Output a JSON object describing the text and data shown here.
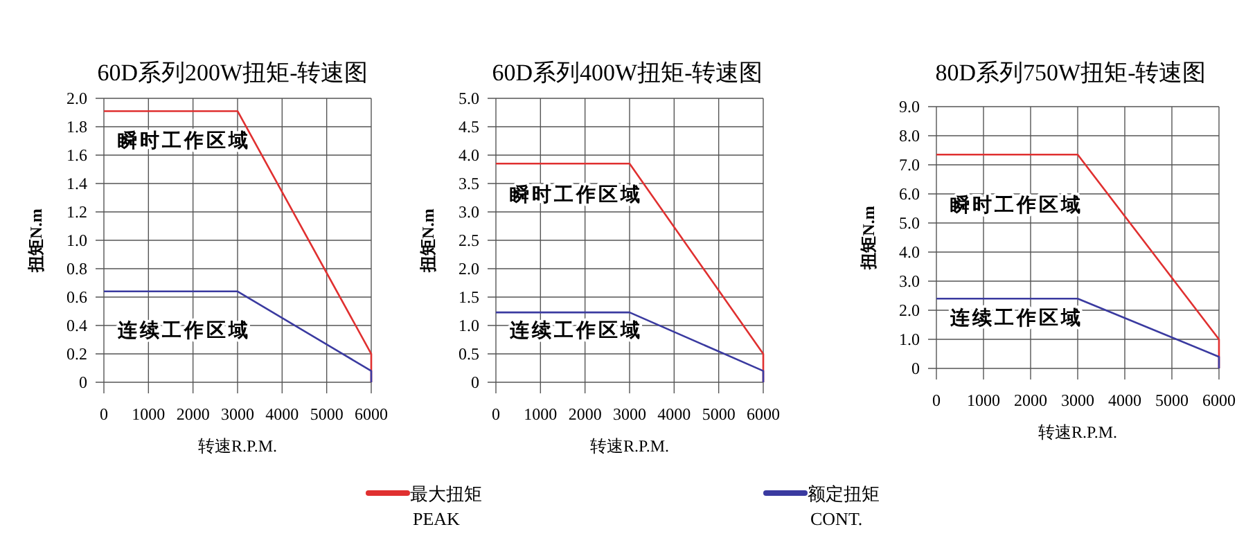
{
  "chart_data": [
    {
      "type": "line",
      "title": "60D系列200W扭矩-转速图",
      "xlabel": "转速R.P.M.",
      "ylabel": "扭矩N.m",
      "xlim": [
        0,
        6000
      ],
      "xticks": [
        0,
        1000,
        2000,
        3000,
        4000,
        5000,
        6000
      ],
      "ylim": [
        0,
        2
      ],
      "yticks": [
        0,
        0.2,
        0.4,
        0.6,
        0.8,
        {
          "value": 1,
          "label": "1.0"
        },
        1.2,
        1.4,
        1.6,
        1.8,
        {
          "value": 2,
          "label": "2.0"
        }
      ],
      "grid": true,
      "legend": "bottom",
      "annotations": [
        "瞬时工作区域",
        "连续工作区域"
      ],
      "series": [
        {
          "name": "最大扭矩\nPEAK",
          "color": "#e03030",
          "x": [
            0,
            3000,
            6000,
            6000
          ],
          "values": [
            1.91,
            1.91,
            0.2,
            0
          ]
        },
        {
          "name": "额定扭矩\nCONT.",
          "color": "#3a3aa0",
          "x": [
            0,
            3000,
            6000,
            6000
          ],
          "values": [
            0.64,
            0.64,
            0.08,
            0
          ]
        }
      ]
    },
    {
      "type": "line",
      "title": "60D系列400W扭矩-转速图",
      "xlabel": "转速R.P.M.",
      "ylabel": "扭矩N.m",
      "xlim": [
        0,
        6000
      ],
      "xticks": [
        0,
        1000,
        2000,
        3000,
        4000,
        5000,
        6000
      ],
      "ylim": [
        0,
        5
      ],
      "yticks": [
        0,
        0.5,
        {
          "value": 1,
          "label": "1.0"
        },
        1.5,
        {
          "value": 2,
          "label": "2.0"
        },
        2.5,
        {
          "value": 3,
          "label": "3.0"
        },
        3.5,
        {
          "value": 4,
          "label": "4.0"
        },
        4.5,
        {
          "value": 5,
          "label": "5.0"
        }
      ],
      "grid": true,
      "annotations": [
        "瞬时工作区域",
        "连续工作区域"
      ],
      "series": [
        {
          "color": "#e03030",
          "x": [
            0,
            3000,
            6000,
            6000
          ],
          "values": [
            3.85,
            3.85,
            0.5,
            0
          ]
        },
        {
          "color": "#3a3aa0",
          "x": [
            0,
            3000,
            6000,
            6000
          ],
          "values": [
            1.23,
            1.23,
            0.2,
            0
          ]
        }
      ]
    },
    {
      "type": "line",
      "title": "80D系列750W扭矩-转速图",
      "xlabel": "转速R.P.M.",
      "ylabel": "扭矩N.m",
      "xlim": [
        0,
        6000
      ],
      "xticks": [
        0,
        1000,
        2000,
        3000,
        4000,
        5000,
        6000
      ],
      "ylim": [
        0,
        9
      ],
      "yticks": [
        0,
        {
          "value": 1,
          "label": "1.0"
        },
        {
          "value": 2,
          "label": "2.0"
        },
        {
          "value": 3,
          "label": "3.0"
        },
        {
          "value": 4,
          "label": "4.0"
        },
        {
          "value": 5,
          "label": "5.0"
        },
        {
          "value": 6,
          "label": "6.0"
        },
        {
          "value": 7,
          "label": "7.0"
        },
        {
          "value": 8,
          "label": "8.0"
        },
        {
          "value": 9,
          "label": "9.0"
        }
      ],
      "grid": true,
      "annotations": [
        "瞬时工作区域",
        "连续工作区域"
      ],
      "series": [
        {
          "color": "#e03030",
          "x": [
            0,
            3000,
            6000,
            6000
          ],
          "values": [
            7.35,
            7.35,
            1.0,
            0
          ]
        },
        {
          "color": "#3a3aa0",
          "x": [
            0,
            3000,
            6000,
            6000
          ],
          "values": [
            2.4,
            2.4,
            0.4,
            0
          ]
        }
      ]
    }
  ]
}
